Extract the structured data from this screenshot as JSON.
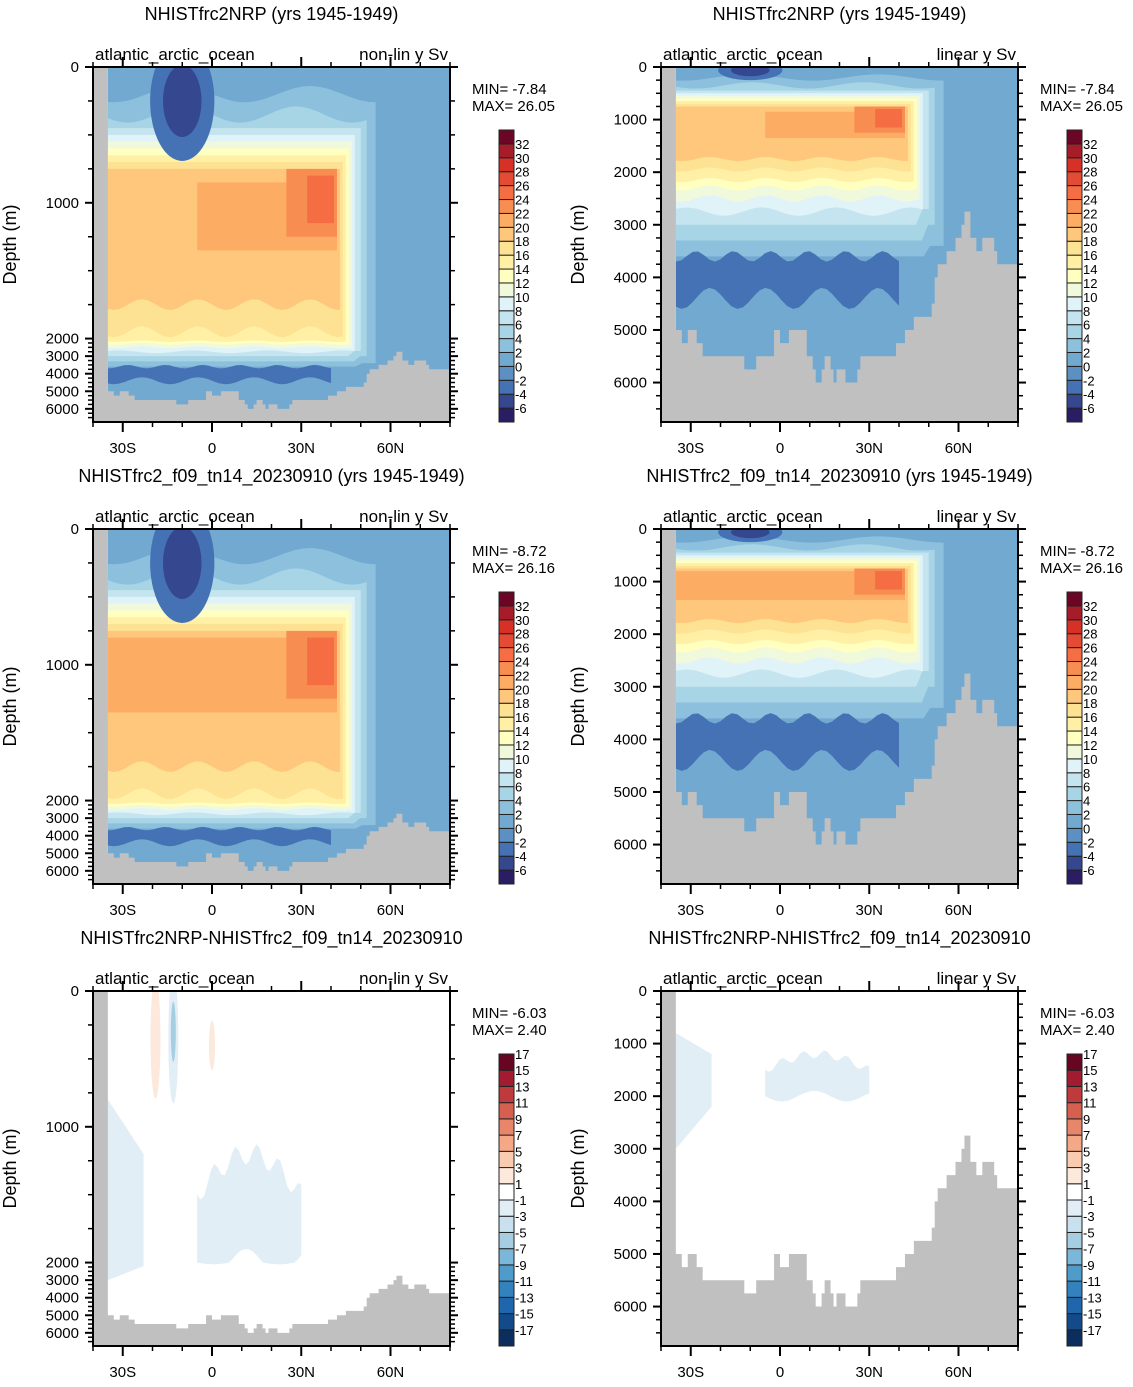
{
  "chart_data": [
    {
      "type": "heatmap",
      "title": "NHISTfrc2NRP (yrs 1945-1949)",
      "left_label": "atlantic_arctic_ocean",
      "right_label": "non-lin y Sv",
      "ylabel": "Depth (m)",
      "y_scale": "non-linear",
      "y_ticks": [
        "0",
        "1000",
        "2000",
        "3000",
        "4000",
        "5000",
        "6000"
      ],
      "x_ticks": [
        "30S",
        "0",
        "30N",
        "60N"
      ],
      "xlim": [
        -40,
        80
      ],
      "ylim": [
        0,
        6750
      ],
      "min_label": "MIN= -7.84",
      "max_label": "MAX= 26.05",
      "colorbar": {
        "labels": [
          "-6",
          "-4",
          "-2",
          "0",
          "2",
          "4",
          "6",
          "8",
          "10",
          "12",
          "14",
          "16",
          "18",
          "20",
          "22",
          "24",
          "26",
          "28",
          "30",
          "32"
        ],
        "palette": "BlueYellowRed"
      },
      "field": "msf_atlantic_1"
    },
    {
      "type": "heatmap",
      "title": "NHISTfrc2NRP (yrs 1945-1949)",
      "left_label": "atlantic_arctic_ocean",
      "right_label": "linear y Sv",
      "ylabel": "Depth (m)",
      "y_scale": "linear",
      "y_ticks": [
        "0",
        "1000",
        "2000",
        "3000",
        "4000",
        "5000",
        "6000"
      ],
      "x_ticks": [
        "30S",
        "0",
        "30N",
        "60N"
      ],
      "xlim": [
        -40,
        80
      ],
      "ylim": [
        0,
        6750
      ],
      "min_label": "MIN= -7.84",
      "max_label": "MAX= 26.05",
      "colorbar": {
        "labels": [
          "-6",
          "-4",
          "-2",
          "0",
          "2",
          "4",
          "6",
          "8",
          "10",
          "12",
          "14",
          "16",
          "18",
          "20",
          "22",
          "24",
          "26",
          "28",
          "30",
          "32"
        ],
        "palette": "BlueYellowRed"
      },
      "field": "msf_atlantic_1"
    },
    {
      "type": "heatmap",
      "title": "NHISTfrc2_f09_tn14_20230910 (yrs 1945-1949)",
      "left_label": "atlantic_arctic_ocean",
      "right_label": "non-lin y Sv",
      "ylabel": "Depth (m)",
      "y_scale": "non-linear",
      "y_ticks": [
        "0",
        "1000",
        "2000",
        "3000",
        "4000",
        "5000",
        "6000"
      ],
      "x_ticks": [
        "30S",
        "0",
        "30N",
        "60N"
      ],
      "xlim": [
        -40,
        80
      ],
      "ylim": [
        0,
        6750
      ],
      "min_label": "MIN= -8.72",
      "max_label": "MAX= 26.16",
      "colorbar": {
        "labels": [
          "-6",
          "-4",
          "-2",
          "0",
          "2",
          "4",
          "6",
          "8",
          "10",
          "12",
          "14",
          "16",
          "18",
          "20",
          "22",
          "24",
          "26",
          "28",
          "30",
          "32"
        ],
        "palette": "BlueYellowRed"
      },
      "field": "msf_atlantic_2"
    },
    {
      "type": "heatmap",
      "title": "NHISTfrc2_f09_tn14_20230910 (yrs 1945-1949)",
      "left_label": "atlantic_arctic_ocean",
      "right_label": "linear y Sv",
      "ylabel": "Depth (m)",
      "y_scale": "linear",
      "y_ticks": [
        "0",
        "1000",
        "2000",
        "3000",
        "4000",
        "5000",
        "6000"
      ],
      "x_ticks": [
        "30S",
        "0",
        "30N",
        "60N"
      ],
      "xlim": [
        -40,
        80
      ],
      "ylim": [
        0,
        6750
      ],
      "min_label": "MIN= -8.72",
      "max_label": "MAX= 26.16",
      "colorbar": {
        "labels": [
          "-6",
          "-4",
          "-2",
          "0",
          "2",
          "4",
          "6",
          "8",
          "10",
          "12",
          "14",
          "16",
          "18",
          "20",
          "22",
          "24",
          "26",
          "28",
          "30",
          "32"
        ],
        "palette": "BlueYellowRed"
      },
      "field": "msf_atlantic_2"
    },
    {
      "type": "heatmap",
      "title": "NHISTfrc2NRP-NHISTfrc2_f09_tn14_20230910",
      "left_label": "atlantic_arctic_ocean",
      "right_label": "non-lin y Sv",
      "ylabel": "Depth (m)",
      "y_scale": "non-linear",
      "y_ticks": [
        "0",
        "1000",
        "2000",
        "3000",
        "4000",
        "5000",
        "6000"
      ],
      "x_ticks": [
        "30S",
        "0",
        "30N",
        "60N"
      ],
      "xlim": [
        -40,
        80
      ],
      "ylim": [
        0,
        6750
      ],
      "min_label": "MIN= -6.03",
      "max_label": "MAX=  2.40",
      "colorbar": {
        "labels": [
          "-17",
          "-15",
          "-13",
          "-11",
          "-9",
          "-7",
          "-5",
          "-3",
          "-1",
          "1",
          "3",
          "5",
          "7",
          "9",
          "11",
          "13",
          "15",
          "17"
        ],
        "palette": "BlueWhiteRed"
      },
      "field": "msf_difference"
    },
    {
      "type": "heatmap",
      "title": "NHISTfrc2NRP-NHISTfrc2_f09_tn14_20230910",
      "left_label": "atlantic_arctic_ocean",
      "right_label": "linear y Sv",
      "ylabel": "Depth (m)",
      "y_scale": "linear",
      "y_ticks": [
        "0",
        "1000",
        "2000",
        "3000",
        "4000",
        "5000",
        "6000"
      ],
      "x_ticks": [
        "30S",
        "0",
        "30N",
        "60N"
      ],
      "xlim": [
        -40,
        80
      ],
      "ylim": [
        0,
        6750
      ],
      "min_label": "MIN= -6.03",
      "max_label": "MAX=  2.40",
      "colorbar": {
        "labels": [
          "-17",
          "-15",
          "-13",
          "-11",
          "-9",
          "-7",
          "-5",
          "-3",
          "-1",
          "1",
          "3",
          "5",
          "7",
          "9",
          "11",
          "13",
          "15",
          "17"
        ],
        "palette": "BlueWhiteRed"
      },
      "field": "msf_difference"
    }
  ],
  "palettes": {
    "BlueYellowRed": [
      "#2a1d63",
      "#35478e",
      "#4472b4",
      "#5c90c2",
      "#72a9d0",
      "#8cc0dd",
      "#a7d5e6",
      "#c4e5ef",
      "#e0f3f8",
      "#f1f9dc",
      "#ffffbf",
      "#fff0a5",
      "#fee294",
      "#fec77c",
      "#fdac63",
      "#f88d52",
      "#f46d43",
      "#e34b34",
      "#d73027",
      "#a71c29",
      "#6b0627"
    ],
    "BlueWhiteRed": [
      "#0b2e5f",
      "#134a8a",
      "#1f66ac",
      "#3382bd",
      "#4f9ccb",
      "#7bb7d8",
      "#a6cee3",
      "#c9e1ef",
      "#e2eef5",
      "#ffffff",
      "#fde8dc",
      "#f9cbb0",
      "#f4a886",
      "#e8866a",
      "#d5604f",
      "#bf3a3c",
      "#a11b31",
      "#670623"
    ],
    "land": "#c0c0c0"
  }
}
